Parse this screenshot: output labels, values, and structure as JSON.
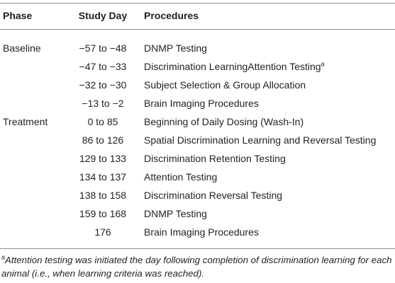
{
  "table": {
    "headers": [
      "Phase",
      "Study Day",
      "Procedures"
    ],
    "rows": [
      {
        "phase": "Baseline",
        "day": "−57 to −48",
        "procedure": "DNMP Testing"
      },
      {
        "day": "−47 to −33",
        "procedure": "Discrimination LearningAttention Testing",
        "note": "a"
      },
      {
        "day": "−32 to −30",
        "procedure": "Subject Selection & Group Allocation"
      },
      {
        "day": "−13 to −2",
        "procedure": "Brain Imaging Procedures"
      },
      {
        "phase": "Treatment",
        "day": "0 to 85",
        "procedure": "Beginning of Daily Dosing (Wash-In)"
      },
      {
        "day": "86 to 126",
        "procedure": "Spatial Discrimination Learning and Reversal Testing"
      },
      {
        "day": "129 to 133",
        "procedure": "Discrimination Retention Testing"
      },
      {
        "day": "134 to 137",
        "procedure": "Attention Testing"
      },
      {
        "day": "138 to 158",
        "procedure": "Discrimination Reversal Testing"
      },
      {
        "day": "159 to 168",
        "procedure": "DNMP Testing"
      },
      {
        "day": "176",
        "procedure": "Brain Imaging Procedures"
      }
    ]
  },
  "footnote": {
    "marker": "a",
    "text": "Attention testing was initiated the day following completion of discrimination learning for each animal (i.e., when learning criteria was reached)."
  }
}
